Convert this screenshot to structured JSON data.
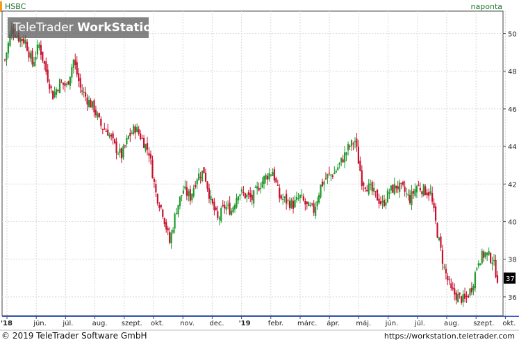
{
  "header": {
    "symbol": "HSBC",
    "period": "naponta",
    "logo_regular": "TeleTrader ",
    "logo_bold": "WorkStation"
  },
  "footer": {
    "copyright": "© 2019 TeleTrader Software GmbH",
    "url": "https://workstation.teletrader.com"
  },
  "colors": {
    "up": "#1e9a2d",
    "down": "#c8102e",
    "accent": "#f29b1d"
  },
  "chart_data": {
    "type": "candlestick",
    "ylim": [
      35,
      51.2
    ],
    "yticks": [
      "36",
      "38",
      "40",
      "42",
      "44",
      "46",
      "48",
      "50"
    ],
    "last_price": "37",
    "xticks": [
      {
        "label": "'18",
        "bold": true
      },
      {
        "label": "jún.",
        "bold": false
      },
      {
        "label": "júl.",
        "bold": false
      },
      {
        "label": "aug.",
        "bold": false
      },
      {
        "label": "szept.",
        "bold": false
      },
      {
        "label": "okt.",
        "bold": false
      },
      {
        "label": "nov.",
        "bold": false
      },
      {
        "label": "dec.",
        "bold": false
      },
      {
        "label": "'19",
        "bold": true
      },
      {
        "label": "febr.",
        "bold": false
      },
      {
        "label": "márc.",
        "bold": false
      },
      {
        "label": "ápr.",
        "bold": false
      },
      {
        "label": "máj.",
        "bold": false
      },
      {
        "label": "jún.",
        "bold": false
      },
      {
        "label": "júl.",
        "bold": false
      },
      {
        "label": "aug.",
        "bold": false
      },
      {
        "label": "szept.",
        "bold": false
      },
      {
        "label": "okt.",
        "bold": false
      }
    ],
    "close_path": [
      [
        0,
        48.6
      ],
      [
        4,
        50.3
      ],
      [
        8,
        49.8
      ],
      [
        12,
        49.6
      ],
      [
        16,
        48.4
      ],
      [
        20,
        49.4
      ],
      [
        24,
        48.0
      ],
      [
        28,
        46.7
      ],
      [
        32,
        47.4
      ],
      [
        36,
        47.2
      ],
      [
        40,
        48.6
      ],
      [
        44,
        47.1
      ],
      [
        48,
        46.5
      ],
      [
        52,
        46.0
      ],
      [
        56,
        45.1
      ],
      [
        60,
        44.8
      ],
      [
        64,
        44.0
      ],
      [
        68,
        43.5
      ],
      [
        72,
        44.5
      ],
      [
        76,
        45.0
      ],
      [
        80,
        44.4
      ],
      [
        84,
        43.7
      ],
      [
        88,
        41.5
      ],
      [
        92,
        40.5
      ],
      [
        96,
        38.9
      ],
      [
        100,
        40.7
      ],
      [
        104,
        41.7
      ],
      [
        108,
        41.3
      ],
      [
        112,
        42.4
      ],
      [
        116,
        42.7
      ],
      [
        120,
        41.1
      ],
      [
        124,
        40.1
      ],
      [
        128,
        40.8
      ],
      [
        132,
        40.6
      ],
      [
        136,
        41.6
      ],
      [
        140,
        41.4
      ],
      [
        144,
        41.2
      ],
      [
        148,
        41.9
      ],
      [
        152,
        42.4
      ],
      [
        156,
        42.7
      ],
      [
        160,
        41.3
      ],
      [
        164,
        41.1
      ],
      [
        168,
        40.9
      ],
      [
        172,
        41.3
      ],
      [
        176,
        40.8
      ],
      [
        180,
        40.6
      ],
      [
        184,
        41.9
      ],
      [
        188,
        42.4
      ],
      [
        192,
        42.6
      ],
      [
        196,
        43.2
      ],
      [
        200,
        43.9
      ],
      [
        204,
        44.3
      ],
      [
        208,
        42.2
      ],
      [
        212,
        41.8
      ],
      [
        216,
        41.4
      ],
      [
        220,
        40.9
      ],
      [
        224,
        41.6
      ],
      [
        228,
        41.9
      ],
      [
        232,
        41.7
      ],
      [
        236,
        41.2
      ],
      [
        240,
        41.9
      ],
      [
        244,
        41.7
      ],
      [
        248,
        41.5
      ],
      [
        252,
        39.4
      ],
      [
        256,
        37.5
      ],
      [
        260,
        36.3
      ],
      [
        264,
        36.0
      ],
      [
        268,
        35.8
      ],
      [
        272,
        36.5
      ],
      [
        276,
        38.0
      ],
      [
        280,
        38.3
      ],
      [
        284,
        38.0
      ],
      [
        287,
        37.0
      ]
    ]
  }
}
